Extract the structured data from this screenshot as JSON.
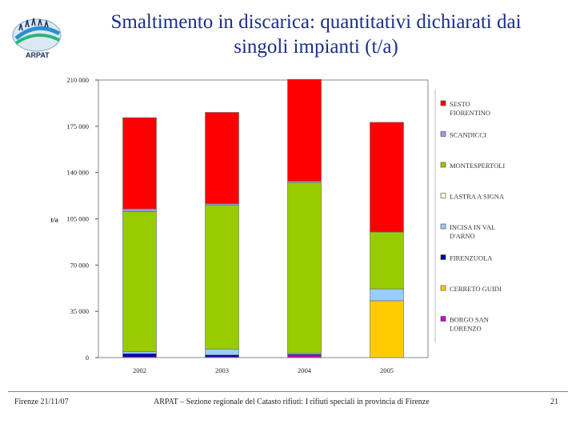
{
  "header": {
    "logo_text": "ARPAT",
    "title_line1": "Smaltimento in discarica: quantitativi dichiarati dai",
    "title_line2": "singoli impianti (t/a)"
  },
  "footer": {
    "date": "Firenze 21/11/07",
    "caption": "ARPAT – Sezione regionale del Catasto rifiuti: I rifiuti speciali in provincia di Firenze",
    "page": "21"
  },
  "colors": {
    "sesto": "#ff0000",
    "scandicci": "#9999ff",
    "montespertoli": "#99cc00",
    "lastra": "#ffffcc",
    "incisa": "#99ccff",
    "firenzuola": "#0000aa",
    "cerreto": "#ffcc00",
    "borgo": "#cc00cc"
  },
  "chart_data": {
    "type": "bar",
    "stacked": true,
    "title": "Smaltimento in discarica: quantitativi dichiarati dai singoli impianti (t/a)",
    "ylabel": "t/a",
    "xlabel": "",
    "ylim": [
      0,
      210000
    ],
    "yticks": [
      0,
      35000,
      70000,
      105000,
      140000,
      175000,
      210000
    ],
    "ytick_labels": [
      "0",
      "35 000",
      "70 000",
      "105 000",
      "140 000",
      "175 000",
      "210 000"
    ],
    "categories": [
      "2002",
      "2003",
      "2004",
      "2005"
    ],
    "legend_position": "right",
    "series": [
      {
        "key": "borgo",
        "name": "BORGO SAN LORENZO",
        "legend_lines": [
          "BORGO SAN",
          "LORENZO"
        ],
        "values": [
          500,
          500,
          1500,
          0
        ]
      },
      {
        "key": "cerreto",
        "name": "CERRETO GUIDI",
        "legend_lines": [
          "CERRETO GUIDI"
        ],
        "values": [
          0,
          0,
          0,
          43000
        ]
      },
      {
        "key": "firenzuola",
        "name": "FIRENZUOLA",
        "legend_lines": [
          "FIRENZUOLA"
        ],
        "values": [
          2500,
          1500,
          1000,
          0
        ]
      },
      {
        "key": "incisa",
        "name": "INCISA IN VAL D'ARNO",
        "legend_lines": [
          "INCISA IN VAL",
          "D'ARNO"
        ],
        "values": [
          1500,
          4500,
          1000,
          9000
        ]
      },
      {
        "key": "lastra",
        "name": "LASTRA A SIGNA",
        "legend_lines": [
          "LASTRA A SIGNA"
        ],
        "values": [
          0,
          0,
          0,
          0
        ]
      },
      {
        "key": "montespertoli",
        "name": "MONTESPERTOLI",
        "legend_lines": [
          "MONTESPERTOLI"
        ],
        "values": [
          106000,
          109000,
          129000,
          43000
        ]
      },
      {
        "key": "scandicci",
        "name": "SCANDICCI",
        "legend_lines": [
          "SCANDICCI"
        ],
        "values": [
          2000,
          1000,
          1000,
          0
        ]
      },
      {
        "key": "sesto",
        "name": "SESTO FIORENTINO",
        "legend_lines": [
          "SESTO",
          "FIORENTINO"
        ],
        "values": [
          69000,
          69000,
          77000,
          83000
        ]
      }
    ]
  }
}
